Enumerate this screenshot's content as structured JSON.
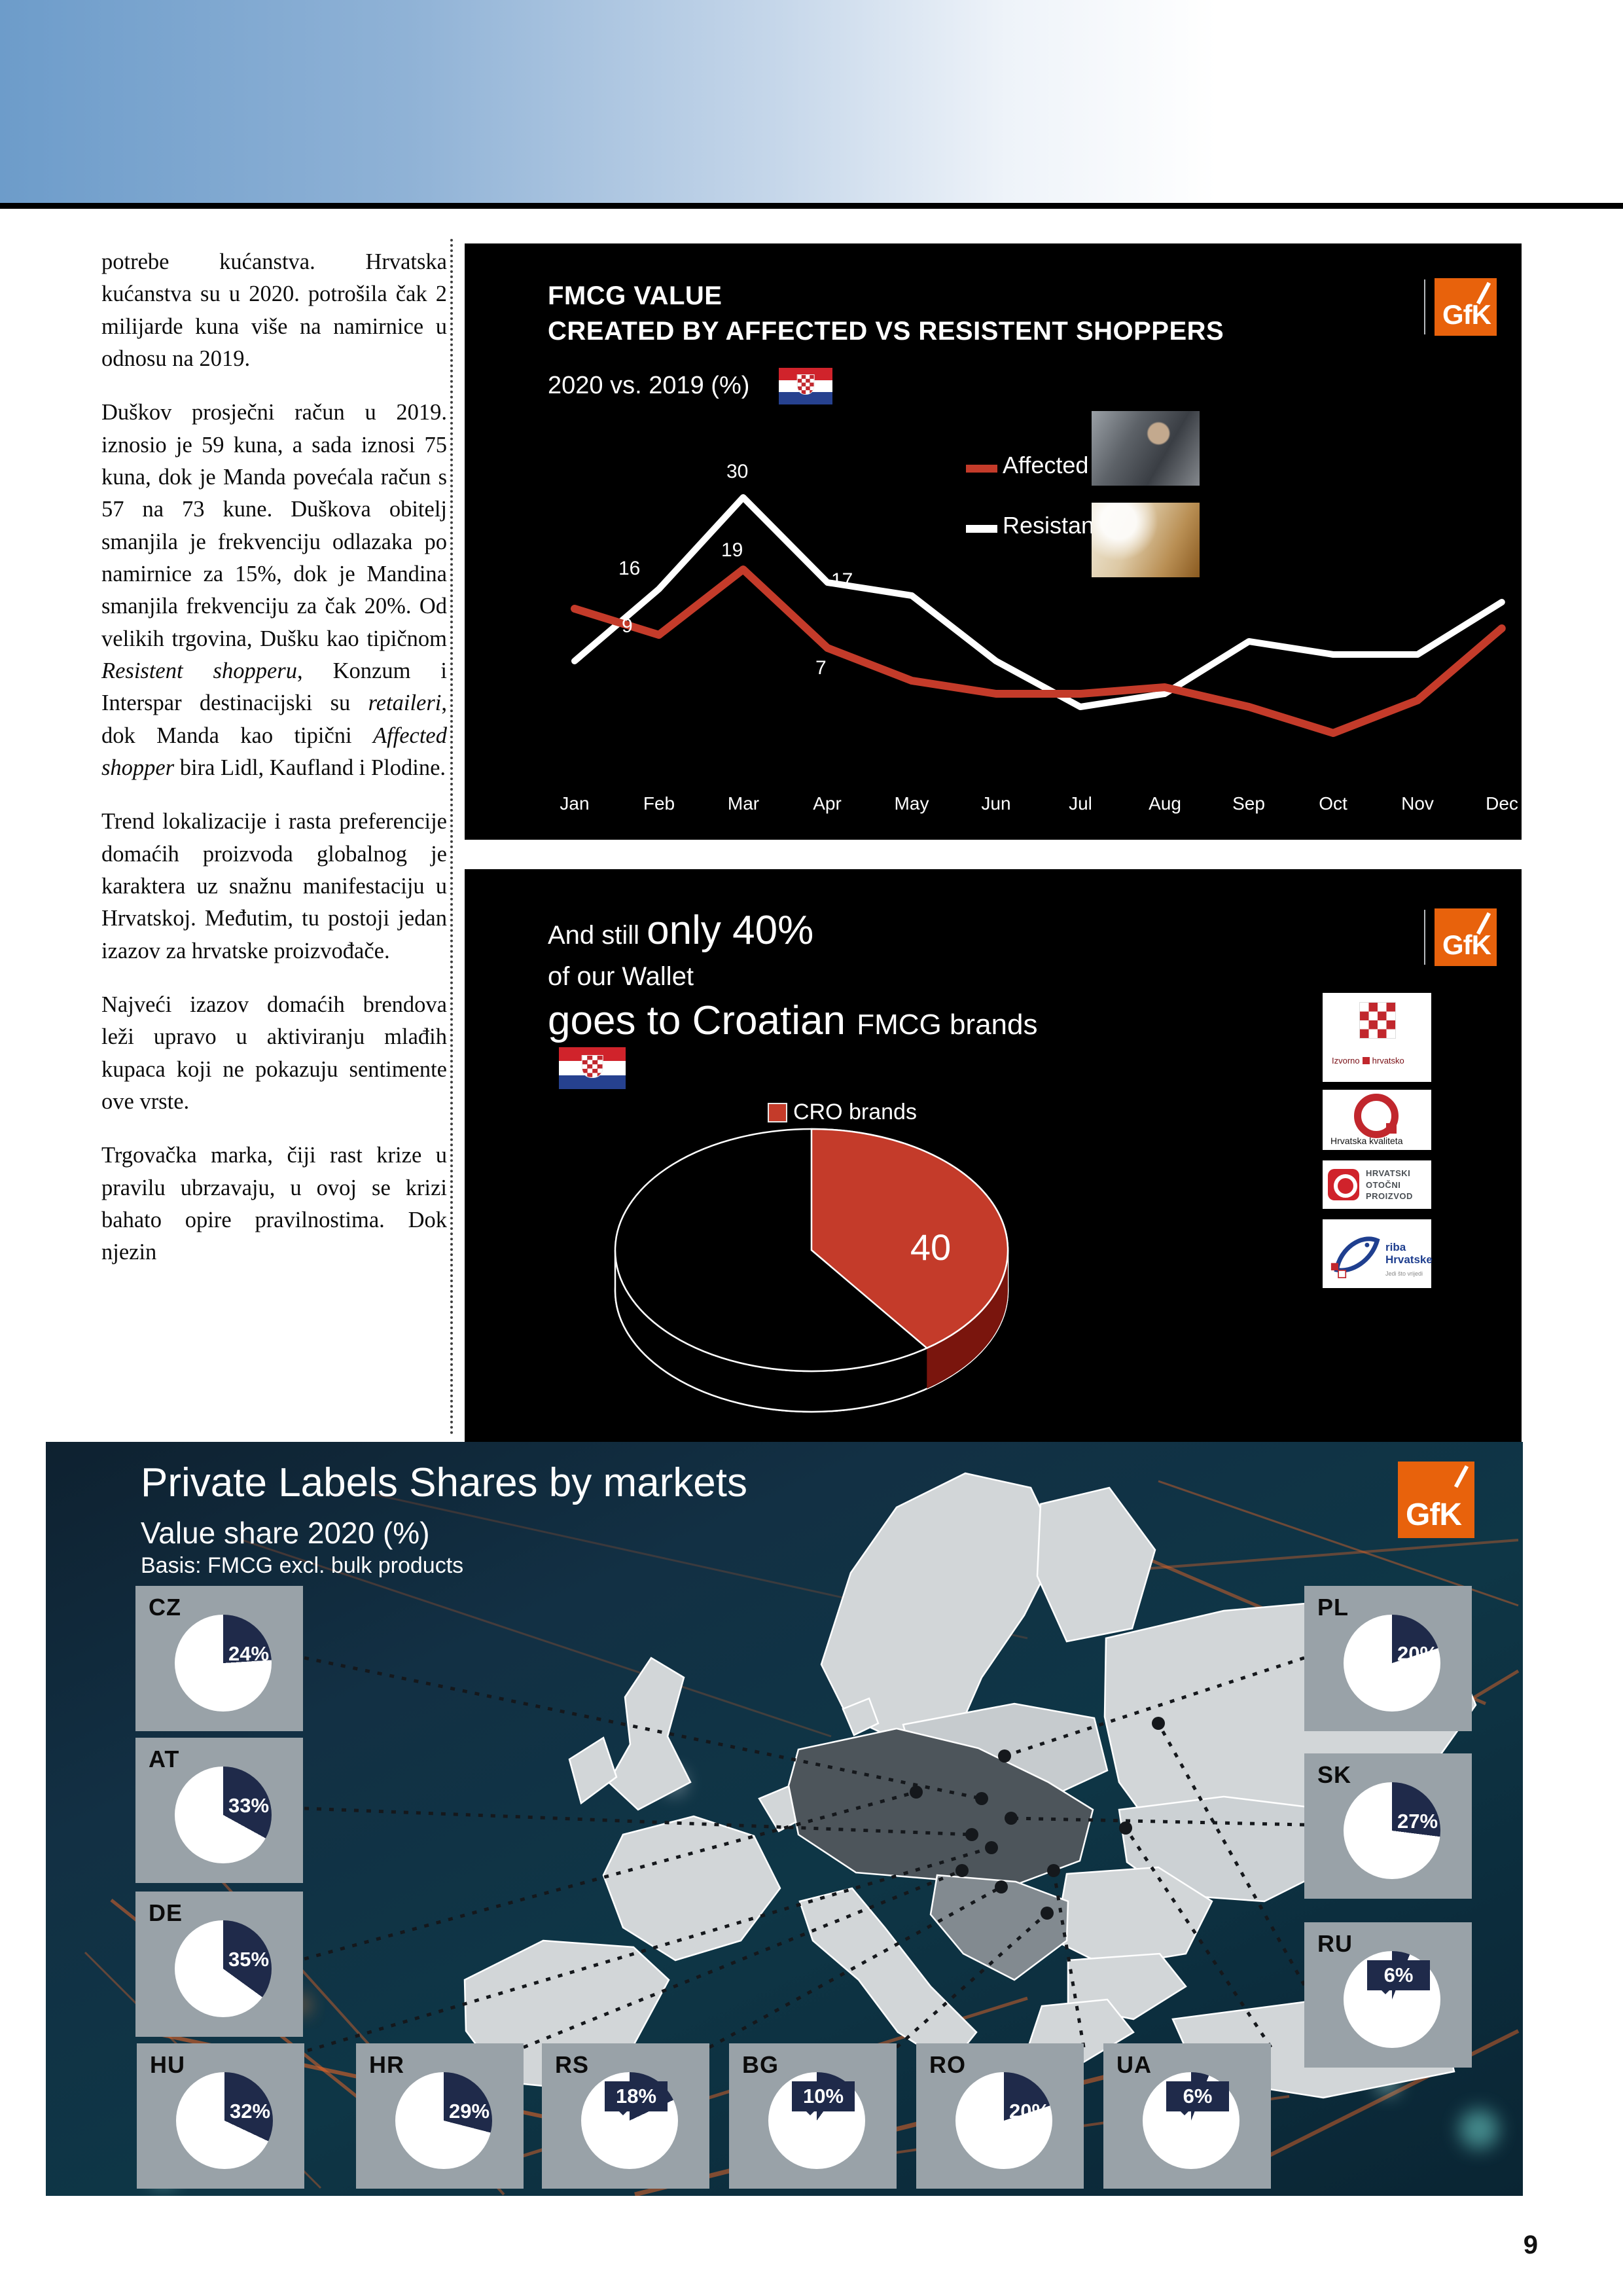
{
  "page_number": "9",
  "colors": {
    "orange": "#e8620c",
    "accent_red": "#c43b2a",
    "dark_red": "#7a150d",
    "navy": "#1f2a4a",
    "card_gray": "#99a2a8",
    "band_blue": "#6d9cca"
  },
  "article": {
    "p1": "potrebe kućanstva. Hrvatska kućanstva su u 2020. potrošila čak 2 milijarde kuna više na namirnice u odnosu na 2019.",
    "p2_s1": "Duškov prosječni račun u 2019. iznosio je 59 kuna, a sada iznosi 75 kuna, dok je Manda povećala račun s 57 na 73 kune. Duškova obitelj smanjila je frekvenciju odlazaka po namirnice za 15%, dok je Mandina smanjila frekvenciju za čak 20%. Od velikih trgovina, Dušku kao tipičnom ",
    "p2_s2": "Resistent shopperu",
    "p2_s3": ", Konzum i Interspar destinacijski su ",
    "p2_s4": "retaileri",
    "p2_s5": ", dok Manda kao tipični ",
    "p2_s6": "Affected shopper",
    "p2_s7": " bira Lidl, Kaufland i Plodine.",
    "p3": "Trend lokalizacije i rasta preferencije domaćih proizvoda globalnog je karaktera uz snažnu manifestaciju u Hrvatskoj. Međutim, tu postoji jedan izazov za hrvatske proizvođače.",
    "p4": "Najveći izazov domaćih brendova leži upravo u aktiviranju mlađih kupaca koji ne pokazuju sentimente ove vrste.",
    "p5": "Trgovačka marka, čiji rast krize u pravilu ubrzavaju, u ovoj se krizi bahato opire pravilnostima. Dok njezin"
  },
  "panel_fmcg": {
    "title_line1": "FMCG VALUE",
    "title_line2": "CREATED BY AFFECTED VS RESISTENT SHOPPERS",
    "subtitle": "2020 vs. 2019 (%)",
    "legend_affected": "Affected",
    "legend_resistant": "Resistant",
    "gfk": "GfK"
  },
  "panel_wallet": {
    "line1_small": "And still ",
    "line1_big": "only 40%",
    "line2": "of our Wallet",
    "line3_big": "goes to Croatian ",
    "line3_small": "FMCG brands",
    "legend": "CRO brands",
    "gfk": "GfK",
    "logo_izvorno_left": "Izvorno",
    "logo_izvorno_right": "hrvatsko",
    "logo_kvaliteta": "Hrvatska kvaliteta",
    "logo_otocni_1": "HRVATSKI",
    "logo_otocni_2": "OTOČNI",
    "logo_otocni_3": "PROIZVOD",
    "logo_riba_1": "riba",
    "logo_riba_2": "Hrvatske",
    "logo_riba_tag": "Jedi što vrijedi"
  },
  "panel_map": {
    "title": "Private Labels Shares by markets",
    "subtitle": "Value share 2020 (%)",
    "basis": "Basis: FMCG excl. bulk products",
    "gfk": "GfK",
    "markets": [
      {
        "code": "CZ",
        "label": "24%"
      },
      {
        "code": "AT",
        "label": "33%"
      },
      {
        "code": "DE",
        "label": "35%"
      },
      {
        "code": "HU",
        "label": "32%"
      },
      {
        "code": "HR",
        "label": "29%"
      },
      {
        "code": "RS",
        "label": "18%"
      },
      {
        "code": "BG",
        "label": "10%"
      },
      {
        "code": "RO",
        "label": "20%"
      },
      {
        "code": "UA",
        "label": "6%"
      },
      {
        "code": "PL",
        "label": "20%"
      },
      {
        "code": "SK",
        "label": "27%"
      },
      {
        "code": "RU",
        "label": "6%"
      }
    ]
  },
  "chart_data": [
    {
      "type": "line",
      "title": "FMCG VALUE CREATED BY AFFECTED VS RESISTENT SHOPPERS",
      "subtitle": "2020 vs. 2019 (%)",
      "x": [
        "Jan",
        "Feb",
        "Mar",
        "Apr",
        "May",
        "Jun",
        "Jul",
        "Aug",
        "Sep",
        "Oct",
        "Nov",
        "Dec"
      ],
      "series": [
        {
          "name": "Affected",
          "color": "#c43b2a",
          "values": [
            13,
            9,
            19,
            7,
            2,
            0,
            0,
            1,
            -2,
            -6,
            -1,
            10
          ]
        },
        {
          "name": "Resistant",
          "color": "#ffffff",
          "values": [
            5,
            16,
            30,
            17,
            15,
            5,
            -2,
            0,
            8,
            6,
            6,
            14
          ]
        }
      ],
      "labeled_points": {
        "Affected": {
          "Feb": 9,
          "Mar": 19,
          "Apr": 7
        },
        "Resistant": {
          "Feb": 16,
          "Mar": 30,
          "Apr": 17
        }
      },
      "ylim": [
        -10,
        34
      ],
      "grid": false,
      "legend_position": "top-right"
    },
    {
      "type": "pie",
      "title": "And still only 40% of our Wallet goes to Croatian FMCG brands",
      "categories": [
        "CRO brands",
        "Other"
      ],
      "values": [
        40,
        60
      ],
      "colors": [
        "#c43b2a",
        "#000000"
      ],
      "style": "3d",
      "legend": [
        "CRO brands"
      ]
    },
    {
      "type": "pie",
      "title": "Private Labels Shares by markets",
      "subtitle": "Value share 2020 (%)",
      "basis": "Basis: FMCG excl. bulk products",
      "categories": [
        "CZ",
        "AT",
        "DE",
        "HU",
        "HR",
        "RS",
        "BG",
        "RO",
        "UA",
        "PL",
        "SK",
        "RU"
      ],
      "values": [
        24,
        33,
        35,
        32,
        29,
        18,
        10,
        20,
        6,
        20,
        27,
        6
      ],
      "unit": "%",
      "slice_color": "#1f2a4a"
    }
  ]
}
